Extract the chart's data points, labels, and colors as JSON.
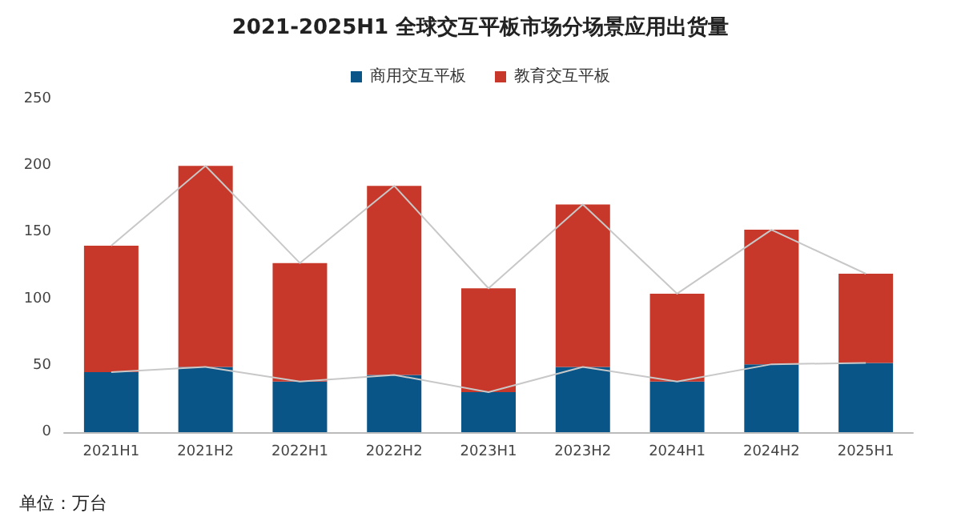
{
  "chart_data": {
    "type": "bar",
    "title": "2021-2025H1 全球交互平板市场分场景应用出货量",
    "categories": [
      "2021H1",
      "2021H2",
      "2022H1",
      "2022H2",
      "2023H1",
      "2023H2",
      "2024H1",
      "2024H2",
      "2025H1"
    ],
    "series": [
      {
        "name": "商用交互平板",
        "color": "#0a5587",
        "values": [
          45,
          49,
          38,
          43,
          30,
          49,
          38,
          51,
          52
        ]
      },
      {
        "name": "教育交互平板",
        "color": "#c8382a",
        "values": [
          95,
          151,
          89,
          142,
          78,
          122,
          66,
          101,
          67
        ]
      },
      {
        "type": "line",
        "color": "#c8c8c8",
        "values": [
          45,
          49,
          38,
          43,
          30,
          49,
          38,
          51,
          52
        ]
      },
      {
        "type": "line",
        "color": "#c8c8c8",
        "values": [
          140,
          200,
          127,
          185,
          108,
          171,
          104,
          152,
          119
        ]
      }
    ],
    "stacked": true,
    "ylim": [
      0,
      250
    ],
    "yticks": [
      0,
      50,
      100,
      150,
      200,
      250
    ],
    "grid": false,
    "legend": "top",
    "marker": "none",
    "annotations": [
      "单位：万台"
    ]
  }
}
